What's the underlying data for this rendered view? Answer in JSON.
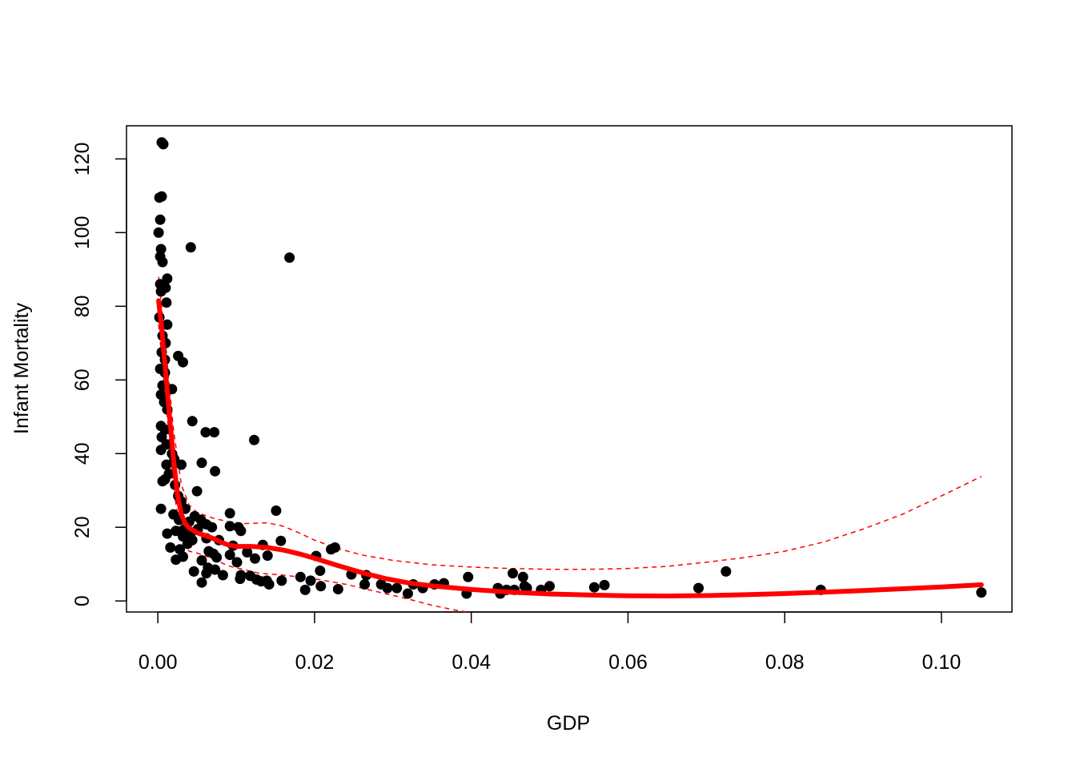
{
  "chart_data": {
    "type": "scatter",
    "xlabel": "GDP",
    "ylabel": "Infant Mortality",
    "xlim": [
      -0.004,
      0.109
    ],
    "ylim": [
      -3,
      129
    ],
    "x_ticks": [
      0.0,
      0.02,
      0.04,
      0.06,
      0.08,
      0.1
    ],
    "x_tick_labels": [
      "0.00",
      "0.02",
      "0.04",
      "0.06",
      "0.08",
      "0.10"
    ],
    "y_ticks": [
      0,
      20,
      40,
      60,
      80,
      100,
      120
    ],
    "y_tick_labels": [
      "0",
      "20",
      "40",
      "60",
      "80",
      "100",
      "120"
    ],
    "grid": false,
    "colors": {
      "points": "#000000",
      "fit": "#ff0000",
      "band": "#ff0000"
    },
    "points": [
      [
        0.0005,
        124.5
      ],
      [
        0.0007,
        124.0
      ],
      [
        0.0002,
        109.5
      ],
      [
        0.0005,
        109.8
      ],
      [
        0.0003,
        103.5
      ],
      [
        0.0001,
        100.0
      ],
      [
        0.0004,
        95.5
      ],
      [
        0.0003,
        93.5
      ],
      [
        0.0006,
        92.0
      ],
      [
        0.0042,
        96.0
      ],
      [
        0.0168,
        93.2
      ],
      [
        0.0012,
        87.5
      ],
      [
        0.0003,
        86.0
      ],
      [
        0.001,
        85.0
      ],
      [
        0.0004,
        84.0
      ],
      [
        0.0011,
        81.0
      ],
      [
        0.0002,
        77.0
      ],
      [
        0.0012,
        75.0
      ],
      [
        0.0006,
        72.0
      ],
      [
        0.001,
        70.0
      ],
      [
        0.0005,
        67.5
      ],
      [
        0.0009,
        65.5
      ],
      [
        0.0026,
        66.5
      ],
      [
        0.0032,
        64.8
      ],
      [
        0.0003,
        63.0
      ],
      [
        0.0009,
        62.0
      ],
      [
        0.0006,
        58.5
      ],
      [
        0.0018,
        57.5
      ],
      [
        0.0004,
        56.0
      ],
      [
        0.0008,
        54.0
      ],
      [
        0.0012,
        52.0
      ],
      [
        0.0044,
        48.8
      ],
      [
        0.0004,
        47.5
      ],
      [
        0.0009,
        46.5
      ],
      [
        0.0061,
        45.8
      ],
      [
        0.0072,
        45.8
      ],
      [
        0.0005,
        44.5
      ],
      [
        0.0123,
        43.7
      ],
      [
        0.0011,
        42.5
      ],
      [
        0.0004,
        41.0
      ],
      [
        0.0018,
        40.0
      ],
      [
        0.0021,
        38.5
      ],
      [
        0.0011,
        37.0
      ],
      [
        0.003,
        37.0
      ],
      [
        0.0056,
        37.5
      ],
      [
        0.0073,
        35.2
      ],
      [
        0.0014,
        34.5
      ],
      [
        0.0006,
        32.5
      ],
      [
        0.0009,
        33.0
      ],
      [
        0.0022,
        31.5
      ],
      [
        0.005,
        29.8
      ],
      [
        0.0026,
        28.5
      ],
      [
        0.003,
        27.0
      ],
      [
        0.0035,
        25.0
      ],
      [
        0.0004,
        25.0
      ],
      [
        0.0151,
        24.5
      ],
      [
        0.002,
        23.5
      ],
      [
        0.0047,
        23.0
      ],
      [
        0.0092,
        23.8
      ],
      [
        0.0027,
        22.0
      ],
      [
        0.004,
        21.5
      ],
      [
        0.0055,
        22.0
      ],
      [
        0.0062,
        20.8
      ],
      [
        0.0069,
        20.0
      ],
      [
        0.0092,
        20.3
      ],
      [
        0.0103,
        20.0
      ],
      [
        0.0106,
        19.0
      ],
      [
        0.0034,
        19.5
      ],
      [
        0.0042,
        18.5
      ],
      [
        0.0012,
        18.3
      ],
      [
        0.0023,
        19.0
      ],
      [
        0.0051,
        19.5
      ],
      [
        0.0032,
        17.5
      ],
      [
        0.0062,
        17.0
      ],
      [
        0.0078,
        16.5
      ],
      [
        0.0044,
        16.5
      ],
      [
        0.0157,
        16.3
      ],
      [
        0.0096,
        15.0
      ],
      [
        0.0134,
        15.2
      ],
      [
        0.0038,
        15.5
      ],
      [
        0.0016,
        14.5
      ],
      [
        0.0028,
        14.0
      ],
      [
        0.0065,
        13.5
      ],
      [
        0.0071,
        12.8
      ],
      [
        0.0114,
        13.2
      ],
      [
        0.014,
        12.3
      ],
      [
        0.0032,
        12.0
      ],
      [
        0.0075,
        11.8
      ],
      [
        0.0092,
        12.5
      ],
      [
        0.0124,
        11.5
      ],
      [
        0.0023,
        11.2
      ],
      [
        0.0056,
        11.0
      ],
      [
        0.0101,
        10.5
      ],
      [
        0.0202,
        12.2
      ],
      [
        0.0226,
        14.5
      ],
      [
        0.0221,
        14.0
      ],
      [
        0.0064,
        9.0
      ],
      [
        0.0073,
        8.5
      ],
      [
        0.0046,
        8.0
      ],
      [
        0.0062,
        7.5
      ],
      [
        0.0083,
        7.0
      ],
      [
        0.0106,
        7.0
      ],
      [
        0.0118,
        6.8
      ],
      [
        0.0105,
        6.0
      ],
      [
        0.0126,
        5.8
      ],
      [
        0.0132,
        5.3
      ],
      [
        0.0142,
        4.5
      ],
      [
        0.0139,
        5.5
      ],
      [
        0.0158,
        5.5
      ],
      [
        0.0182,
        6.5
      ],
      [
        0.0195,
        5.5
      ],
      [
        0.0207,
        8.2
      ],
      [
        0.0247,
        7.2
      ],
      [
        0.0266,
        7.0
      ],
      [
        0.0056,
        5.0
      ],
      [
        0.0188,
        3.0
      ],
      [
        0.0208,
        4.0
      ],
      [
        0.023,
        3.2
      ],
      [
        0.0264,
        4.5
      ],
      [
        0.0285,
        4.5
      ],
      [
        0.0293,
        3.5
      ],
      [
        0.0305,
        3.5
      ],
      [
        0.0319,
        2.0
      ],
      [
        0.0326,
        4.5
      ],
      [
        0.0338,
        3.5
      ],
      [
        0.0353,
        4.5
      ],
      [
        0.0365,
        4.8
      ],
      [
        0.0396,
        6.5
      ],
      [
        0.0394,
        2.0
      ],
      [
        0.0434,
        3.5
      ],
      [
        0.0437,
        2.0
      ],
      [
        0.0445,
        3.0
      ],
      [
        0.0453,
        7.5
      ],
      [
        0.0466,
        6.5
      ],
      [
        0.0468,
        4.0
      ],
      [
        0.0471,
        3.5
      ],
      [
        0.0455,
        3.0
      ],
      [
        0.0489,
        3.0
      ],
      [
        0.05,
        4.0
      ],
      [
        0.0557,
        3.7
      ],
      [
        0.057,
        4.3
      ],
      [
        0.069,
        3.5
      ],
      [
        0.0725,
        8.0
      ],
      [
        0.0846,
        3.0
      ],
      [
        0.1051,
        2.3
      ]
    ],
    "fit": [
      [
        0.0001,
        81.5
      ],
      [
        0.0005,
        74.0
      ],
      [
        0.001,
        62.0
      ],
      [
        0.0015,
        50.0
      ],
      [
        0.002,
        38.5
      ],
      [
        0.0025,
        29.0
      ],
      [
        0.003,
        23.5
      ],
      [
        0.0035,
        21.0
      ],
      [
        0.004,
        19.8
      ],
      [
        0.005,
        18.5
      ],
      [
        0.006,
        17.8
      ],
      [
        0.007,
        17.0
      ],
      [
        0.008,
        16.0
      ],
      [
        0.009,
        15.2
      ],
      [
        0.01,
        14.8
      ],
      [
        0.012,
        14.8
      ],
      [
        0.014,
        14.5
      ],
      [
        0.016,
        13.8
      ],
      [
        0.018,
        12.8
      ],
      [
        0.02,
        11.6
      ],
      [
        0.023,
        9.6
      ],
      [
        0.026,
        7.7
      ],
      [
        0.029,
        6.1
      ],
      [
        0.032,
        4.9
      ],
      [
        0.035,
        4.1
      ],
      [
        0.04,
        3.1
      ],
      [
        0.045,
        2.4
      ],
      [
        0.05,
        1.9
      ],
      [
        0.055,
        1.6
      ],
      [
        0.06,
        1.4
      ],
      [
        0.065,
        1.35
      ],
      [
        0.07,
        1.45
      ],
      [
        0.075,
        1.7
      ],
      [
        0.08,
        2.0
      ],
      [
        0.085,
        2.4
      ],
      [
        0.09,
        2.8
      ],
      [
        0.095,
        3.3
      ],
      [
        0.1,
        3.8
      ],
      [
        0.1051,
        4.4
      ]
    ],
    "band_upper": [
      [
        0.0001,
        88.0
      ],
      [
        0.001,
        69.0
      ],
      [
        0.002,
        46.5
      ],
      [
        0.003,
        31.5
      ],
      [
        0.004,
        26.0
      ],
      [
        0.005,
        24.0
      ],
      [
        0.007,
        22.5
      ],
      [
        0.009,
        21.5
      ],
      [
        0.011,
        21.0
      ],
      [
        0.014,
        21.2
      ],
      [
        0.016,
        20.3
      ],
      [
        0.018,
        18.5
      ],
      [
        0.02,
        16.5
      ],
      [
        0.023,
        14.2
      ],
      [
        0.026,
        12.5
      ],
      [
        0.03,
        11.0
      ],
      [
        0.035,
        9.8
      ],
      [
        0.04,
        9.2
      ],
      [
        0.045,
        8.8
      ],
      [
        0.05,
        8.6
      ],
      [
        0.055,
        8.6
      ],
      [
        0.06,
        8.8
      ],
      [
        0.065,
        9.4
      ],
      [
        0.07,
        10.5
      ],
      [
        0.075,
        11.8
      ],
      [
        0.08,
        13.5
      ],
      [
        0.085,
        16.0
      ],
      [
        0.09,
        19.5
      ],
      [
        0.095,
        23.5
      ],
      [
        0.1,
        28.5
      ],
      [
        0.1051,
        33.8
      ]
    ],
    "band_lower": [
      [
        0.0001,
        75.0
      ],
      [
        0.001,
        55.0
      ],
      [
        0.002,
        31.0
      ],
      [
        0.003,
        16.0
      ],
      [
        0.004,
        13.5
      ],
      [
        0.005,
        13.0
      ],
      [
        0.007,
        11.5
      ],
      [
        0.009,
        9.5
      ],
      [
        0.011,
        8.5
      ],
      [
        0.013,
        7.5
      ],
      [
        0.016,
        7.0
      ],
      [
        0.02,
        6.0
      ],
      [
        0.024,
        4.5
      ],
      [
        0.028,
        2.5
      ],
      [
        0.032,
        0.5
      ],
      [
        0.035,
        -1.2
      ],
      [
        0.038,
        -2.5
      ],
      [
        0.0395,
        -3.0
      ]
    ]
  }
}
